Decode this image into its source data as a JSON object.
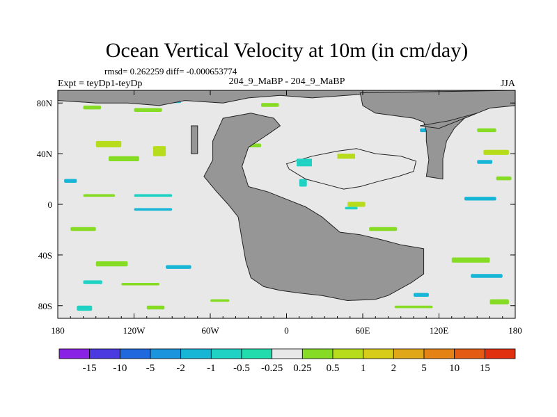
{
  "chart_data": {
    "type": "heatmap",
    "title": "Ocean Vertical Velocity at 10m (in cm/day)",
    "stats_text": "rmsd= 0.262259 diff= -0.000653774",
    "left_label": "Expt = teyDp1-teyDp",
    "center_label": "204_9_MaBP - 204_9_MaBP",
    "right_label": "JJA",
    "x_ticks": [
      "180",
      "120W",
      "60W",
      "0",
      "60E",
      "120E",
      "180"
    ],
    "y_ticks": [
      "80N",
      "40N",
      "0",
      "40S",
      "80S"
    ],
    "x_range_deg": [
      -180,
      180
    ],
    "y_range_deg": [
      -90,
      90
    ],
    "colorbar": {
      "labels": [
        "-15",
        "-10",
        "-5",
        "-2",
        "-1",
        "-0.5",
        "-0.25",
        "0.25",
        "0.5",
        "1",
        "2",
        "5",
        "10",
        "15"
      ],
      "colors": [
        "#8a22e6",
        "#4a3ae0",
        "#1f68de",
        "#1a94dc",
        "#17b5d6",
        "#20d2c4",
        "#22dcae",
        "#e8e8e8",
        "#86dc24",
        "#b6dc1c",
        "#d8cc1a",
        "#e0a818",
        "#e48216",
        "#e45c14",
        "#e03010"
      ]
    },
    "land_color": "#969696",
    "ocean_color": "#e8e8e8"
  }
}
